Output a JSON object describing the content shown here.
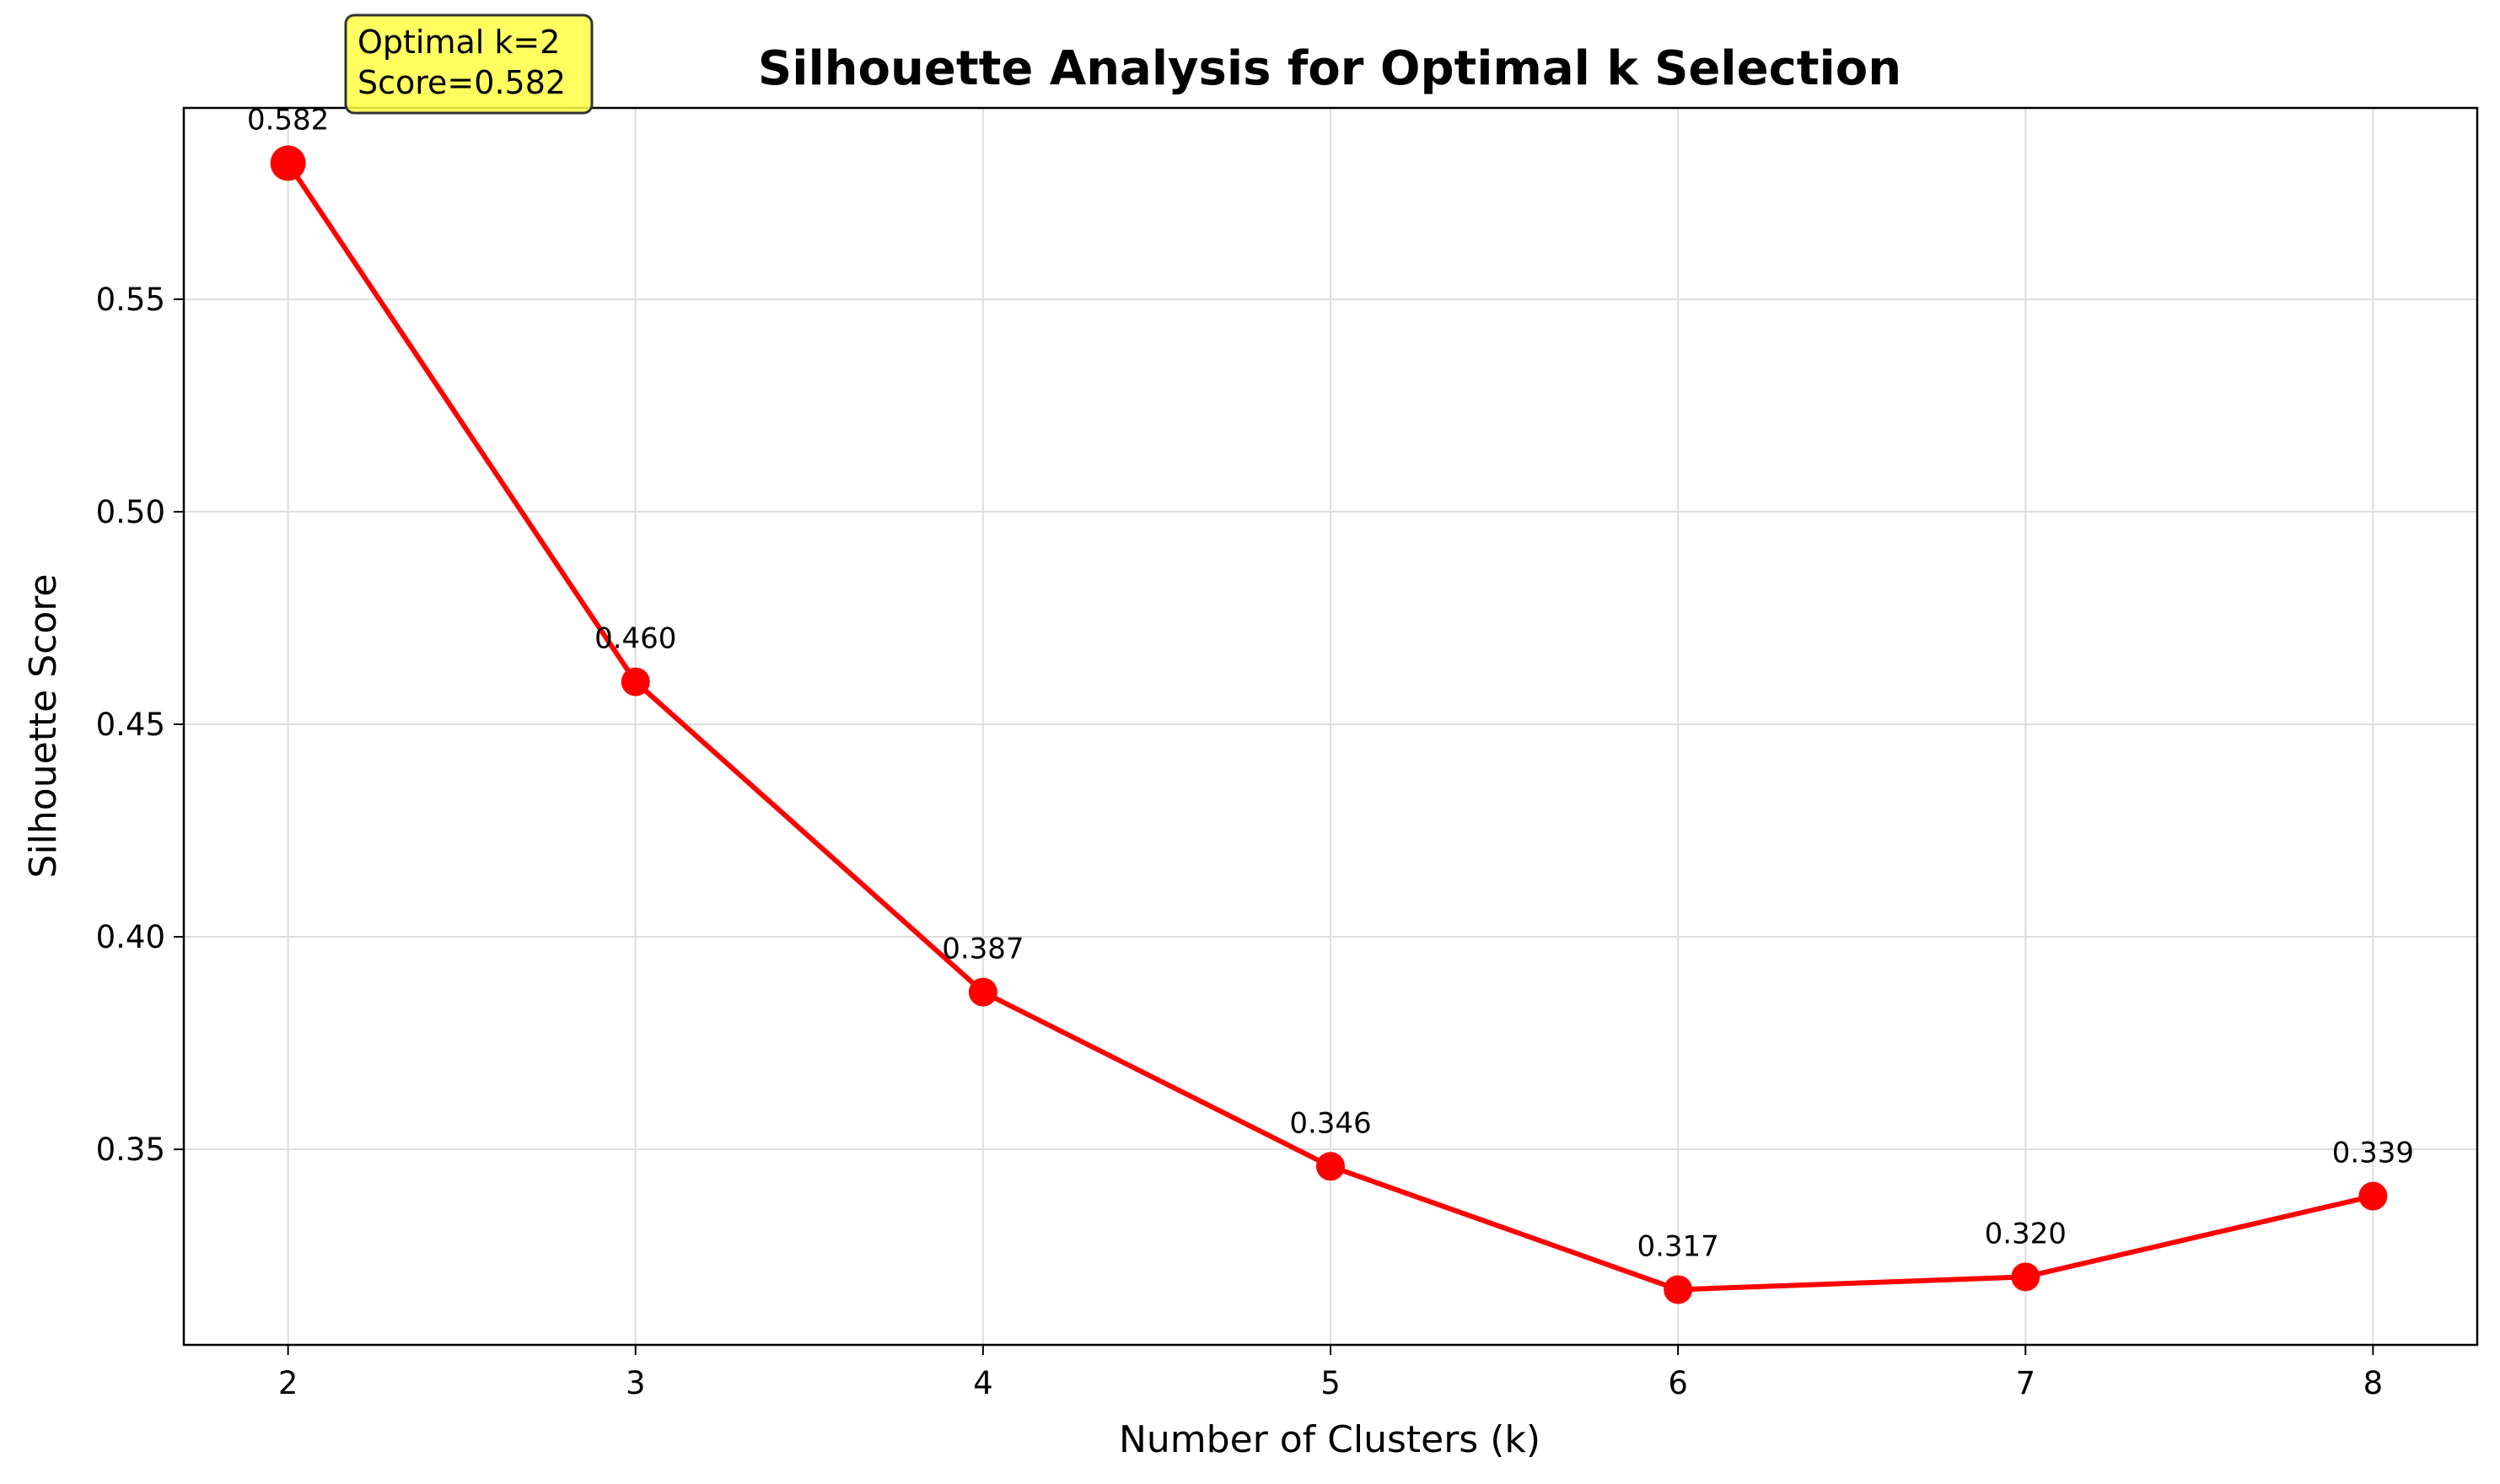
{
  "chart_data": {
    "type": "line",
    "title": "Silhouette Analysis for Optimal k Selection",
    "xlabel": "Number of Clusters (k)",
    "ylabel": "Silhouette Score",
    "x": [
      2,
      3,
      4,
      5,
      6,
      7,
      8
    ],
    "series": [
      {
        "values": [
          0.582,
          0.46,
          0.387,
          0.346,
          0.317,
          0.32,
          0.339
        ],
        "labels": [
          "0.582",
          "0.460",
          "0.387",
          "0.346",
          "0.317",
          "0.320",
          "0.339"
        ],
        "color": "#ff0000"
      }
    ],
    "xticks": [
      "2",
      "3",
      "4",
      "5",
      "6",
      "7",
      "8"
    ],
    "yticks": [
      0.35,
      0.4,
      0.45,
      0.5,
      0.55
    ],
    "ytick_labels": [
      "0.35",
      "0.40",
      "0.45",
      "0.50",
      "0.55"
    ],
    "xlim": [
      1.7,
      8.3
    ],
    "ylim": [
      0.304,
      0.595
    ],
    "grid": true,
    "annotation": {
      "lines": [
        "Optimal k=2",
        "Score=0.582"
      ],
      "target_x": 2,
      "target_y": 0.582,
      "background": "#ffff44"
    }
  }
}
